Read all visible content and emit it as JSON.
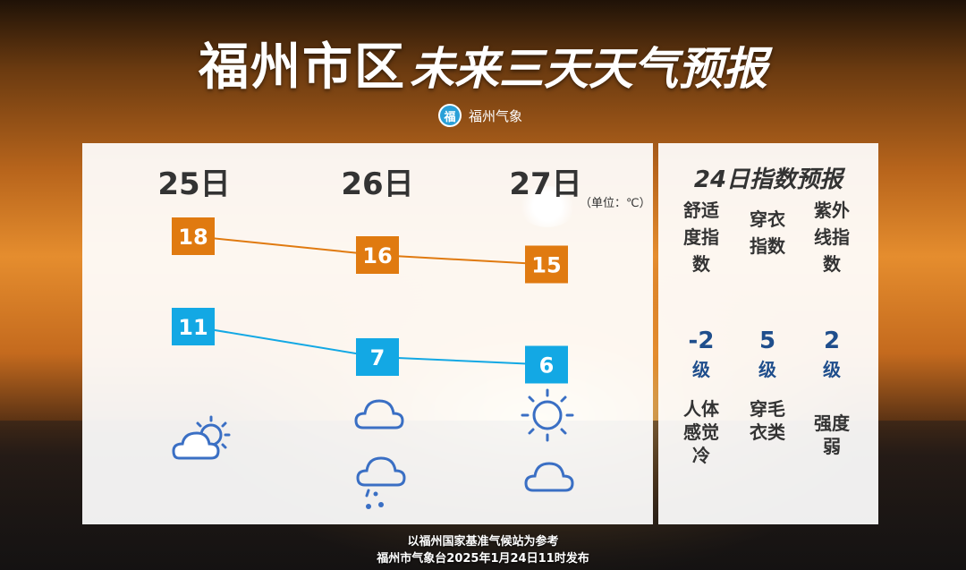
{
  "title": {
    "main": "福州市区",
    "sub": "未来三天天气预报"
  },
  "brand": {
    "name": "福州气象",
    "logo_glyph": "福"
  },
  "forecast": {
    "unit": "（单位：℃）",
    "days": [
      {
        "label": "25日",
        "high": 18,
        "low": 11,
        "icons": [
          "partly-cloudy-icon"
        ]
      },
      {
        "label": "26日",
        "high": 16,
        "low": 7,
        "icons": [
          "cloud-icon",
          "rain-icon"
        ]
      },
      {
        "label": "27日",
        "high": 15,
        "low": 6,
        "icons": [
          "sun-icon",
          "cloud-icon"
        ]
      }
    ],
    "colors": {
      "high": "#e07a10",
      "low": "#13a8e4",
      "icon": "#3a6fc4"
    }
  },
  "indices": {
    "title": "24日指数预报",
    "items": [
      {
        "name": "舒适度指数",
        "value": "-2",
        "level": "级",
        "desc": "人体感觉冷"
      },
      {
        "name": "穿衣指数",
        "value": "5",
        "level": "级",
        "desc": "穿毛衣类"
      },
      {
        "name": "紫外线指数",
        "value": "2",
        "level": "级",
        "desc": "强度弱"
      }
    ]
  },
  "footer": {
    "line1": "以福州国家基准气候站为参考",
    "line2": "福州市气象台2025年1月24日11时发布"
  }
}
